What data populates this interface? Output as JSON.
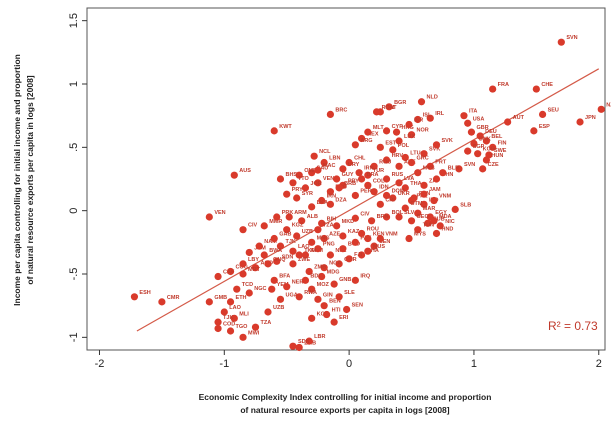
{
  "chart_data": {
    "type": "scatter",
    "title": "",
    "xlabel_line1": "Economic Complexity Index controlling for initial income and proportion",
    "xlabel_line2": "of natural resource exports per capita in logs [2008]",
    "ylabel_line1": "Income per capita controlling for initial income and proportion",
    "ylabel_line2": "of natural resource exports per capita in logs [2008]",
    "xlim": [
      -2.1,
      2.05
    ],
    "ylim": [
      -1.1,
      1.6
    ],
    "xticks": [
      -2,
      -1,
      0,
      1,
      2
    ],
    "xtick_labels": [
      "-2",
      "-1",
      "0",
      "1",
      "2"
    ],
    "yticks": [
      -1,
      -0.5,
      0,
      0.5,
      1,
      1.5
    ],
    "ytick_labels": [
      "-1",
      "-.5",
      "0",
      ".5",
      "1",
      "1.5"
    ],
    "grid": false,
    "annotation": "R² = 0.73",
    "fit_line": {
      "x": [
        -1.7,
        2.0
      ],
      "y": [
        -0.95,
        1.12
      ]
    },
    "colors": {
      "marker": "#d93a2b",
      "line": "#d45a48",
      "annotation": "#c0392b"
    },
    "points": [
      {
        "label": "SVN",
        "x": 1.7,
        "y": 1.33
      },
      {
        "label": "NZL",
        "x": 2.02,
        "y": 0.8
      },
      {
        "label": "JPN",
        "x": 1.85,
        "y": 0.7
      },
      {
        "label": "FRA",
        "x": 1.15,
        "y": 0.96
      },
      {
        "label": "CHE",
        "x": 1.5,
        "y": 0.96
      },
      {
        "label": "SEU",
        "x": 1.55,
        "y": 0.76
      },
      {
        "label": "AUT",
        "x": 1.27,
        "y": 0.7
      },
      {
        "label": "ESP",
        "x": 1.48,
        "y": 0.63
      },
      {
        "label": "ITA",
        "x": 0.92,
        "y": 0.75
      },
      {
        "label": "USA",
        "x": 0.95,
        "y": 0.69
      },
      {
        "label": "GBR",
        "x": 0.98,
        "y": 0.62
      },
      {
        "label": "DEU",
        "x": 1.05,
        "y": 0.59
      },
      {
        "label": "BEL",
        "x": 1.1,
        "y": 0.55
      },
      {
        "label": "DNK",
        "x": 1.0,
        "y": 0.53
      },
      {
        "label": "FIN",
        "x": 1.15,
        "y": 0.5
      },
      {
        "label": "SWE",
        "x": 1.12,
        "y": 0.44
      },
      {
        "label": "KOR",
        "x": 1.03,
        "y": 0.45
      },
      {
        "label": "HUN",
        "x": 1.1,
        "y": 0.4
      },
      {
        "label": "SVN",
        "x": 0.88,
        "y": 0.33
      },
      {
        "label": "CZE",
        "x": 1.07,
        "y": 0.33
      },
      {
        "label": "SGP",
        "x": 0.95,
        "y": 0.47
      },
      {
        "label": "IRL",
        "x": 0.65,
        "y": 0.73
      },
      {
        "label": "NLD",
        "x": 0.58,
        "y": 0.86
      },
      {
        "label": "QAT",
        "x": 0.25,
        "y": 0.78
      },
      {
        "label": "BGR",
        "x": 0.32,
        "y": 0.82
      },
      {
        "label": "ISL",
        "x": 0.55,
        "y": 0.72
      },
      {
        "label": "NOR",
        "x": 0.5,
        "y": 0.6
      },
      {
        "label": "LUX",
        "x": 0.4,
        "y": 0.55
      },
      {
        "label": "KWT",
        "x": -0.6,
        "y": 0.63
      },
      {
        "label": "BRC",
        "x": -0.15,
        "y": 0.76
      },
      {
        "label": "MEX",
        "x": 0.1,
        "y": 0.57
      },
      {
        "label": "ARG",
        "x": 0.05,
        "y": 0.52
      },
      {
        "label": "EST",
        "x": 0.25,
        "y": 0.5
      },
      {
        "label": "POL",
        "x": 0.35,
        "y": 0.48
      },
      {
        "label": "LTU",
        "x": 0.45,
        "y": 0.42
      },
      {
        "label": "SVK",
        "x": 0.6,
        "y": 0.45
      },
      {
        "label": "HRV",
        "x": 0.3,
        "y": 0.4
      },
      {
        "label": "ARE",
        "x": 0.4,
        "y": 0.35
      },
      {
        "label": "GRC",
        "x": 0.5,
        "y": 0.38
      },
      {
        "label": "PRT",
        "x": 0.65,
        "y": 0.35
      },
      {
        "label": "MYS",
        "x": 0.55,
        "y": 0.3
      },
      {
        "label": "ROU",
        "x": 0.2,
        "y": 0.35
      },
      {
        "label": "TUR",
        "x": 0.15,
        "y": 0.28
      },
      {
        "label": "CHL",
        "x": 0.0,
        "y": 0.38
      },
      {
        "label": "URY",
        "x": -0.05,
        "y": 0.33
      },
      {
        "label": "BRA",
        "x": 0.1,
        "y": 0.25
      },
      {
        "label": "RUS",
        "x": 0.3,
        "y": 0.25
      },
      {
        "label": "LVA",
        "x": 0.4,
        "y": 0.22
      },
      {
        "label": "THA",
        "x": 0.45,
        "y": 0.18
      },
      {
        "label": "ZAF",
        "x": 0.6,
        "y": 0.2
      },
      {
        "label": "CHN",
        "x": 0.7,
        "y": 0.25
      },
      {
        "label": "BLR",
        "x": 0.75,
        "y": 0.3
      },
      {
        "label": "UKR",
        "x": 0.35,
        "y": 0.1
      },
      {
        "label": "PHL",
        "x": 0.5,
        "y": 0.08
      },
      {
        "label": "IND",
        "x": 0.6,
        "y": 0.05
      },
      {
        "label": "IDN",
        "x": 0.2,
        "y": 0.15
      },
      {
        "label": "COL",
        "x": 0.15,
        "y": 0.2
      },
      {
        "label": "PER",
        "x": 0.05,
        "y": 0.12
      },
      {
        "label": "VNM",
        "x": 0.68,
        "y": 0.08
      },
      {
        "label": "CRI",
        "x": 0.25,
        "y": 0.05
      },
      {
        "label": "DOM",
        "x": 0.3,
        "y": 0.12
      },
      {
        "label": "PAN",
        "x": 0.52,
        "y": 0.1
      },
      {
        "label": "JAM",
        "x": 0.6,
        "y": 0.13
      },
      {
        "label": "GTM",
        "x": 0.45,
        "y": 0.02
      },
      {
        "label": "SLV",
        "x": 0.4,
        "y": -0.05
      },
      {
        "label": "MAR",
        "x": 0.55,
        "y": -0.02
      },
      {
        "label": "EGY",
        "x": 0.65,
        "y": -0.05
      },
      {
        "label": "CUB",
        "x": 0.63,
        "y": -0.1
      },
      {
        "label": "TUN",
        "x": 0.55,
        "y": -0.15
      },
      {
        "label": "NIC",
        "x": 0.73,
        "y": -0.12
      },
      {
        "label": "HND",
        "x": 0.7,
        "y": -0.18
      },
      {
        "label": "SLB",
        "x": 0.85,
        "y": 0.01
      },
      {
        "label": "MDA",
        "x": 0.68,
        "y": -0.08
      },
      {
        "label": "GEO",
        "x": 0.5,
        "y": -0.08
      },
      {
        "label": "BOL",
        "x": 0.3,
        "y": -0.05
      },
      {
        "label": "PRY",
        "x": -0.05,
        "y": 0.2
      },
      {
        "label": "ECU",
        "x": -0.15,
        "y": 0.15
      },
      {
        "label": "VEN2",
        "x": -0.25,
        "y": 0.22
      },
      {
        "label": "SAU",
        "x": -0.3,
        "y": 0.3
      },
      {
        "label": "OMN",
        "x": -0.4,
        "y": 0.28
      },
      {
        "label": "LBN",
        "x": -0.2,
        "y": 0.38
      },
      {
        "label": "JOR",
        "x": -0.35,
        "y": 0.18
      },
      {
        "label": "TTO",
        "x": -0.45,
        "y": 0.22
      },
      {
        "label": "IRN",
        "x": -0.22,
        "y": 0.08
      },
      {
        "label": "AUS",
        "x": -0.92,
        "y": 0.28
      },
      {
        "label": "BHS",
        "x": -0.55,
        "y": 0.25
      },
      {
        "label": "PRY2",
        "x": -0.5,
        "y": 0.13
      },
      {
        "label": "SYR",
        "x": -0.42,
        "y": 0.1
      },
      {
        "label": "LKA",
        "x": -0.3,
        "y": 0.03
      },
      {
        "label": "DZA",
        "x": -0.15,
        "y": 0.05
      },
      {
        "label": "VEN",
        "x": -1.12,
        "y": -0.05
      },
      {
        "label": "CIV",
        "x": -0.85,
        "y": -0.15
      },
      {
        "label": "ARM",
        "x": -0.48,
        "y": -0.05
      },
      {
        "label": "ALB",
        "x": -0.38,
        "y": -0.08
      },
      {
        "label": "BIH",
        "x": -0.22,
        "y": -0.1
      },
      {
        "label": "MKD",
        "x": -0.1,
        "y": -0.12
      },
      {
        "label": "KAZ",
        "x": -0.05,
        "y": -0.2
      },
      {
        "label": "AZE",
        "x": -0.2,
        "y": -0.22
      },
      {
        "label": "MNG",
        "x": -0.3,
        "y": -0.25
      },
      {
        "label": "UZB",
        "x": -0.42,
        "y": -0.2
      },
      {
        "label": "KGZ",
        "x": -0.5,
        "y": -0.15
      },
      {
        "label": "TJK",
        "x": -0.55,
        "y": -0.28
      },
      {
        "label": "LAO",
        "x": -0.45,
        "y": -0.32
      },
      {
        "label": "KHM",
        "x": -0.35,
        "y": -0.35
      },
      {
        "label": "PNG",
        "x": -0.25,
        "y": -0.3
      },
      {
        "label": "NPL",
        "x": -0.15,
        "y": -0.35
      },
      {
        "label": "BGD",
        "x": -0.05,
        "y": -0.3
      },
      {
        "label": "PAK",
        "x": 0.05,
        "y": -0.25
      },
      {
        "label": "KEN",
        "x": 0.15,
        "y": -0.22
      },
      {
        "label": "SEN",
        "x": 0.2,
        "y": -0.28
      },
      {
        "label": "GHA",
        "x": 0.1,
        "y": -0.35
      },
      {
        "label": "CMR",
        "x": -0.08,
        "y": -0.42
      },
      {
        "label": "NGA",
        "x": -0.2,
        "y": -0.45
      },
      {
        "label": "ZMB",
        "x": -0.32,
        "y": -0.48
      },
      {
        "label": "ZWE",
        "x": -0.45,
        "y": -0.42
      },
      {
        "label": "SDN",
        "x": -0.58,
        "y": -0.4
      },
      {
        "label": "JAM2",
        "x": -0.8,
        "y": -0.33
      },
      {
        "label": "NAM",
        "x": -0.72,
        "y": -0.28
      },
      {
        "label": "BWA",
        "x": -0.68,
        "y": -0.35
      },
      {
        "label": "GAB",
        "x": -0.6,
        "y": -0.22
      },
      {
        "label": "AGO",
        "x": -0.75,
        "y": -0.45
      },
      {
        "label": "MRT",
        "x": -0.85,
        "y": -0.5
      },
      {
        "label": "COG",
        "x": -0.95,
        "y": -0.48
      },
      {
        "label": "CAF",
        "x": -1.05,
        "y": -0.52
      },
      {
        "label": "TCD",
        "x": -0.9,
        "y": -0.62
      },
      {
        "label": "NGC",
        "x": -0.8,
        "y": -0.65
      },
      {
        "label": "YEM",
        "x": -0.62,
        "y": -0.62
      },
      {
        "label": "ETH",
        "x": -0.95,
        "y": -0.72
      },
      {
        "label": "UGA",
        "x": -0.55,
        "y": -0.7
      },
      {
        "label": "UZB2",
        "x": -0.65,
        "y": -0.8
      },
      {
        "label": "MOZ",
        "x": -0.3,
        "y": -0.62
      },
      {
        "label": "GIN",
        "x": -0.25,
        "y": -0.7
      },
      {
        "label": "BEN",
        "x": -0.2,
        "y": -0.75
      },
      {
        "label": "KGZ2",
        "x": -0.3,
        "y": -0.85
      },
      {
        "label": "TZA",
        "x": -0.75,
        "y": -0.92
      },
      {
        "label": "MLI",
        "x": -0.92,
        "y": -0.85
      },
      {
        "label": "GMB",
        "x": -1.12,
        "y": -0.72
      },
      {
        "label": "LAO2",
        "x": -1.0,
        "y": -0.8
      },
      {
        "label": "TJK2",
        "x": -1.05,
        "y": -0.88
      },
      {
        "label": "MWI",
        "x": -0.85,
        "y": -1.0
      },
      {
        "label": "ZMB2",
        "x": -0.4,
        "y": -1.08
      },
      {
        "label": "LBR",
        "x": -0.32,
        "y": -1.03
      },
      {
        "label": "SDN2",
        "x": -0.45,
        "y": -1.07
      },
      {
        "label": "IRQ",
        "x": 0.05,
        "y": -0.55
      },
      {
        "label": "GNB",
        "x": -0.12,
        "y": -0.58
      },
      {
        "label": "SEN2",
        "x": -0.02,
        "y": -0.78
      },
      {
        "label": "BFA",
        "x": -0.6,
        "y": -0.55
      },
      {
        "label": "NER",
        "x": -0.5,
        "y": -0.6
      },
      {
        "label": "RWA",
        "x": -0.4,
        "y": -0.68
      },
      {
        "label": "ERI",
        "x": -0.12,
        "y": -0.88
      },
      {
        "label": "HTI",
        "x": -0.18,
        "y": -0.82
      },
      {
        "label": "MDG",
        "x": -0.22,
        "y": -0.52
      },
      {
        "label": "BDI",
        "x": -0.35,
        "y": -0.55
      },
      {
        "label": "SLE",
        "x": -0.08,
        "y": -0.68
      },
      {
        "label": "COD",
        "x": -1.05,
        "y": -0.93
      },
      {
        "label": "TGO",
        "x": -0.95,
        "y": -0.95
      },
      {
        "label": "ESH",
        "x": -1.72,
        "y": -0.68
      },
      {
        "label": "CMR2",
        "x": -1.5,
        "y": -0.72
      },
      {
        "label": "TKM",
        "x": -0.4,
        "y": -0.35
      },
      {
        "label": "GNQ",
        "x": -0.65,
        "y": -0.42
      },
      {
        "label": "LBY",
        "x": -0.85,
        "y": -0.42
      },
      {
        "label": "MMR",
        "x": -0.68,
        "y": -0.12
      },
      {
        "label": "PRK",
        "x": -0.58,
        "y": -0.05
      },
      {
        "label": "CIV2",
        "x": 0.05,
        "y": -0.06
      },
      {
        "label": "TZA2",
        "x": -0.25,
        "y": -0.15
      },
      {
        "label": "ROU2",
        "x": 0.1,
        "y": -0.18
      },
      {
        "label": "MUS",
        "x": 0.15,
        "y": -0.32
      },
      {
        "label": "FJI",
        "x": 0.0,
        "y": -0.38
      },
      {
        "label": "ROM",
        "x": 0.22,
        "y": 0.78
      },
      {
        "label": "HKG",
        "x": 0.38,
        "y": 0.62
      },
      {
        "label": "ISR",
        "x": 0.48,
        "y": 0.68
      },
      {
        "label": "CYP",
        "x": 0.3,
        "y": 0.63
      },
      {
        "label": "MLT",
        "x": 0.15,
        "y": 0.62
      },
      {
        "label": "SVK2",
        "x": 0.7,
        "y": 0.52
      },
      {
        "label": "MYS2",
        "x": 0.48,
        "y": -0.22
      },
      {
        "label": "BRN",
        "x": 0.18,
        "y": -0.08
      },
      {
        "label": "VNM2",
        "x": 0.25,
        "y": -0.22
      },
      {
        "label": "IRN2",
        "x": 0.08,
        "y": 0.3
      },
      {
        "label": "NCL",
        "x": -0.28,
        "y": 0.43
      },
      {
        "label": "GUY",
        "x": -0.1,
        "y": 0.25
      },
      {
        "label": "BRB",
        "x": -0.08,
        "y": 0.18
      },
      {
        "label": "MAC",
        "x": -0.25,
        "y": 0.32
      }
    ]
  }
}
